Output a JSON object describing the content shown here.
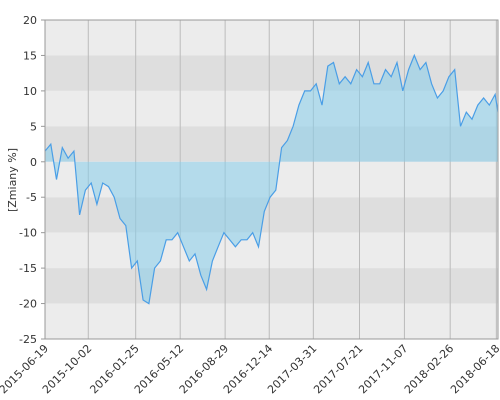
{
  "chart_data": {
    "type": "area",
    "y_label": "[Zmiany %]",
    "x": [
      "2015-06-19",
      "2015-07-03",
      "2015-07-17",
      "2015-07-31",
      "2015-08-14",
      "2015-08-28",
      "2015-09-11",
      "2015-09-25",
      "2015-10-09",
      "2015-10-23",
      "2015-11-06",
      "2015-11-20",
      "2015-12-04",
      "2015-12-18",
      "2016-01-01",
      "2016-01-15",
      "2016-01-29",
      "2016-02-12",
      "2016-02-26",
      "2016-03-11",
      "2016-03-25",
      "2016-04-08",
      "2016-04-22",
      "2016-05-06",
      "2016-05-20",
      "2016-06-03",
      "2016-06-17",
      "2016-07-01",
      "2016-07-15",
      "2016-07-29",
      "2016-08-12",
      "2016-08-26",
      "2016-09-09",
      "2016-09-23",
      "2016-10-07",
      "2016-10-21",
      "2016-11-04",
      "2016-11-18",
      "2016-12-02",
      "2016-12-16",
      "2016-12-30",
      "2017-01-13",
      "2017-01-27",
      "2017-02-10",
      "2017-02-24",
      "2017-03-10",
      "2017-03-24",
      "2017-04-07",
      "2017-04-21",
      "2017-05-05",
      "2017-05-19",
      "2017-06-02",
      "2017-06-16",
      "2017-06-30",
      "2017-07-14",
      "2017-07-28",
      "2017-08-11",
      "2017-08-25",
      "2017-09-08",
      "2017-09-22",
      "2017-10-06",
      "2017-10-20",
      "2017-11-03",
      "2017-11-17",
      "2017-12-01",
      "2017-12-15",
      "2017-12-29",
      "2018-01-12",
      "2018-01-26",
      "2018-02-09",
      "2018-02-23",
      "2018-03-09",
      "2018-03-23",
      "2018-04-06",
      "2018-04-20",
      "2018-05-04",
      "2018-05-18",
      "2018-06-01",
      "2018-06-15",
      "2018-06-22"
    ],
    "series": [
      {
        "color": "#4a9ee6",
        "values": [
          1.5,
          2.5,
          -2.5,
          2,
          0.5,
          1.5,
          -7.5,
          -4,
          -3,
          -6,
          -3,
          -3.5,
          -5,
          -8,
          -9,
          -15,
          -14,
          -19.5,
          -20,
          -15,
          -14,
          -11,
          -11,
          -10,
          -12,
          -14,
          -13,
          -16,
          -18,
          -14,
          -12,
          -10,
          -11,
          -12,
          -11,
          -11,
          -10,
          -12,
          -7,
          -5,
          -4,
          2,
          3,
          5,
          8,
          10,
          10,
          11,
          8,
          13.5,
          14,
          11,
          12,
          11,
          13,
          12,
          14,
          11,
          11,
          13,
          12,
          14,
          10,
          13,
          15,
          13,
          14,
          11,
          9,
          10,
          12,
          13,
          5,
          7,
          6,
          8,
          9,
          8,
          9.5,
          7
        ]
      }
    ],
    "xlim": [
      "2015-06-19",
      "2018-06-22"
    ],
    "xticks": [
      "2015-06-19",
      "2015-10-02",
      "2016-01-25",
      "2016-05-12",
      "2016-08-29",
      "2016-12-14",
      "2017-03-31",
      "2017-07-21",
      "2017-11-07",
      "2018-02-26",
      "2018-06-18"
    ],
    "ylim": [
      -25,
      20
    ],
    "yticks": [
      20,
      15,
      10,
      5,
      0,
      -5,
      -10,
      -15,
      -20,
      -25
    ],
    "grid": true
  }
}
